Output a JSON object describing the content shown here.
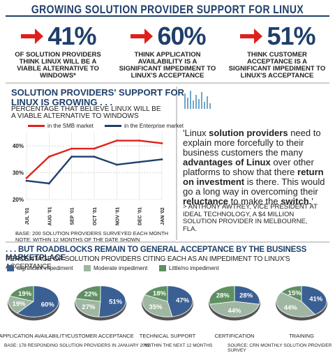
{
  "header": {
    "title": "GROWING SOLUTION PROVIDER SUPPORT FOR LINUX"
  },
  "stats": [
    {
      "value": "41%",
      "caption": "OF SOLUTION PROVIDERS THINK LINUX WILL BE A VIABLE ALTERNATIVE TO WINDOWS*"
    },
    {
      "value": "60%",
      "caption": "THINK APPLICATION AVAILABILITY IS A SIGNIFICANT IMPEDIMENT TO LINUX'S ACCEPTANCE"
    },
    {
      "value": "51%",
      "caption": "THINK CUSTOMER ACCEPTANCE IS A SIGNIFICANT IMPEDIMENT TO LINUX'S ACCEPTANCE"
    }
  ],
  "line_chart": {
    "title": "SOLUTION PROVIDERS' SUPPORT FOR LINUX IS GROWING . . .",
    "subtitle": "PERCENTAGE THAT BELIEVE LINUX WILL BE A VIABLE ALTERNATIVE TO WINDOWS",
    "note": "BASE: 200 SOLUTION PROVIDERS SURVEYED EACH MONTH NOTE: WITHIN 12 MONTHS OF THE DATE SHOWN"
  },
  "quote": {
    "text_html": "'Linux <b>solution providers</b> need to explain more forcefully to their business customers the many <b>advantages of Linux</b> over other platforms to show that there <b>return on investment</b> is there. This would go a long way in overcoming their <b>reluctance</b> to make the <b>switch.</b>'",
    "attribution": "> ANTHONY AWTREY, VICE PRESIDENT AT IDEAL TECHNOLOGY, A $4 MILLION SOLUTION PROVIDER IN MELBOURNE, FLA."
  },
  "roadblocks": {
    "title": ". . . BUT ROADBLOCKS REMAIN TO GENERAL ACCEPTANCE BY THE BUSINESS MARKETPLACE",
    "subtitle": "PERCENTAGE OF SOLUTION PROVIDERS CITING EACH AS AN IMPEDIMENT TO LINUX'S ACCEPTANCE"
  },
  "footer": {
    "base": "BASE: 178 RESPONDING SOLUTION PROVIDERS IN JANUARY 2002",
    "footnote": "*WITHIN THE NEXT 12 MONTHS",
    "source": "SOURCE: CRN MONTHLY SOLUTION PROVIDER SURVEY"
  },
  "colors": {
    "navy": "#1e3f6a",
    "smb": "#e0201a",
    "enterprise": "#1e3f6a",
    "significant": "#3a5f93",
    "moderate": "#9fb7a2",
    "little": "#5f8f62",
    "arrow": "#e0201a"
  },
  "chart_data": [
    {
      "type": "line",
      "x": [
        "JUL '01",
        "AUG '01",
        "SEP '01",
        "OCT '01",
        "NOV '01",
        "DEC '01",
        "JAN '02"
      ],
      "yticks": [
        "20%",
        "30%",
        "40%"
      ],
      "ylim": [
        20,
        45
      ],
      "series": [
        {
          "name": "in the SMB market",
          "color": "#e0201a",
          "values": [
            28,
            36,
            39,
            39,
            42,
            42,
            41
          ]
        },
        {
          "name": "in the Enterprise market",
          "color": "#1e3f6a",
          "values": [
            27,
            26,
            36,
            36,
            33,
            34,
            35
          ]
        }
      ],
      "legend": "top"
    },
    {
      "type": "pie",
      "legend": [
        "Significant impediment",
        "Moderate impediment",
        "Little/no impediment"
      ],
      "charts": [
        {
          "name": "APPLICATION AVAILABILITY",
          "values": [
            60,
            19,
            19
          ],
          "labels": [
            "60%",
            "19%",
            "19%"
          ]
        },
        {
          "name": "CUSTOMER ACCEPTANCE",
          "values": [
            51,
            27,
            22
          ],
          "labels": [
            "51%",
            "27%",
            "22%"
          ]
        },
        {
          "name": "TECHNICAL SUPPORT",
          "values": [
            47,
            35,
            18
          ],
          "labels": [
            "47%",
            "35%",
            "18%"
          ]
        },
        {
          "name": "CERTIFICATION",
          "values": [
            28,
            44,
            28
          ],
          "labels": [
            "28%",
            "44%",
            "28%"
          ]
        },
        {
          "name": "TRAINING",
          "values": [
            41,
            44,
            15
          ],
          "labels": [
            "41%",
            "44%",
            "15%"
          ]
        }
      ]
    }
  ]
}
